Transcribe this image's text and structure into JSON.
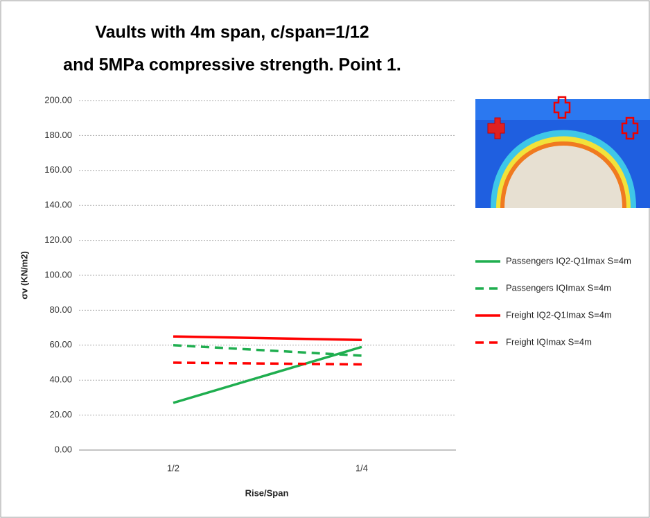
{
  "chart_data": {
    "type": "line",
    "title": [
      "Vaults with 4m span,  c/span=1/12",
      "and 5MPa compressive strength. Point 1."
    ],
    "x_label": "Rise/Span",
    "y_label": "σv (KN/m2)",
    "categories": [
      "1/2",
      "1/4"
    ],
    "series": [
      {
        "name": "Passengers IQ2-Q1Imax S=4m",
        "color": "#1fae4f",
        "style": "solid",
        "values": [
          27,
          59
        ]
      },
      {
        "name": "Passengers IQImax S=4m",
        "color": "#1fae4f",
        "style": "dashed",
        "values": [
          60,
          54
        ]
      },
      {
        "name": "Freight IQ2-Q1Imax S=4m",
        "color": "#ff0000",
        "style": "solid",
        "values": [
          65,
          63
        ]
      },
      {
        "name": "Freight IQImax S=4m",
        "color": "#ff0000",
        "style": "dashed",
        "values": [
          50,
          49
        ]
      }
    ],
    "ylim": [
      0,
      200
    ],
    "yticks": [
      {
        "value": 0,
        "label": "0.00"
      },
      {
        "value": 20,
        "label": "20.00"
      },
      {
        "value": 40,
        "label": "40.00"
      },
      {
        "value": 60,
        "label": "60.00"
      },
      {
        "value": 80,
        "label": "80.00"
      },
      {
        "value": 100,
        "label": "100.00"
      },
      {
        "value": 120,
        "label": "120.00"
      },
      {
        "value": 140,
        "label": "140.00"
      },
      {
        "value": 160,
        "label": "160.00"
      },
      {
        "value": 180,
        "label": "180.00"
      },
      {
        "value": 200,
        "label": "200.00"
      }
    ],
    "grid": true
  }
}
